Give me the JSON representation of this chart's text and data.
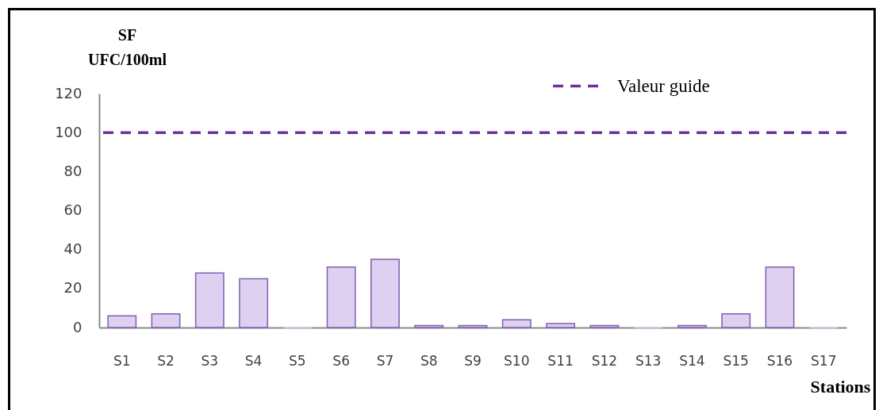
{
  "chart_data": {
    "type": "bar",
    "categories": [
      "S1",
      "S2",
      "S3",
      "S4",
      "S5",
      "S6",
      "S7",
      "S8",
      "S9",
      "S10",
      "S11",
      "S12",
      "S13",
      "S14",
      "S15",
      "S16",
      "S17"
    ],
    "values": [
      6,
      7,
      28,
      25,
      0,
      31,
      35,
      1,
      1,
      4,
      2,
      1,
      0,
      1,
      7,
      31,
      0
    ],
    "color": "#ddd0f0",
    "ylabel": "SF\nUFC/100ml",
    "xlabel": "Stations",
    "ylim": [
      0,
      120
    ],
    "yticks": [
      0,
      20,
      40,
      60,
      80,
      100,
      120
    ],
    "ref_lines": [
      {
        "axis": "y",
        "value": 100,
        "label": "Valeur guide",
        "color": "#7030a0",
        "line_style": "dashed"
      }
    ],
    "legend": "top right",
    "grid": false
  }
}
